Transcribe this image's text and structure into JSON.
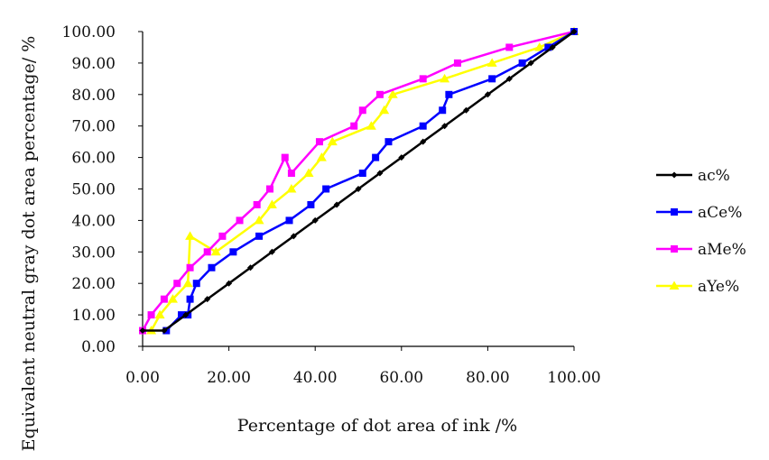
{
  "chart_data": {
    "type": "line",
    "title": "",
    "xlabel": "Percentage of dot area of ink /%",
    "ylabel": "Equivalent neutral gray dot area percentage/ %",
    "xlim": [
      0,
      100
    ],
    "ylim": [
      0,
      100
    ],
    "xticks": [
      "0.00",
      "20.00",
      "40.00",
      "60.00",
      "80.00",
      "100.00"
    ],
    "yticks": [
      "0.00",
      "10.00",
      "20.00",
      "30.00",
      "40.00",
      "50.00",
      "60.00",
      "70.00",
      "80.00",
      "90.00",
      "100.00"
    ],
    "grid": false,
    "legend_position": "right",
    "series": [
      {
        "name": "ac%",
        "color": "#000000",
        "marker": "diamond",
        "x": [
          0,
          5,
          10,
          15,
          20,
          25,
          30,
          35,
          40,
          45,
          50,
          55,
          60,
          65,
          70,
          75,
          80,
          85,
          90,
          95,
          100
        ],
        "y": [
          5,
          5,
          10,
          15,
          20,
          25,
          30,
          35,
          40,
          45,
          50,
          55,
          60,
          65,
          70,
          75,
          80,
          85,
          90,
          95,
          100
        ]
      },
      {
        "name": "aCe%",
        "color": "#0000ff",
        "marker": "square",
        "x": [
          5.5,
          9,
          10.5,
          11,
          12.5,
          16,
          21,
          27,
          34,
          39,
          42.5,
          51,
          54,
          57,
          65,
          69.5,
          71,
          81,
          88,
          94,
          100
        ],
        "y": [
          5,
          10,
          10,
          15,
          20,
          25,
          30,
          35,
          40,
          45,
          50,
          55,
          60,
          65,
          70,
          75,
          80,
          85,
          90,
          95,
          100
        ]
      },
      {
        "name": "aMe%",
        "color": "#ff00ff",
        "marker": "square",
        "x": [
          0,
          2,
          5,
          8,
          11,
          15,
          18.5,
          22.5,
          26.5,
          29.5,
          33,
          34.5,
          41,
          49,
          51,
          55,
          65,
          73,
          85,
          100
        ],
        "y": [
          5,
          10,
          15,
          20,
          25,
          30,
          35,
          40,
          45,
          50,
          60,
          55,
          65,
          70,
          75,
          80,
          85,
          90,
          95,
          100
        ]
      },
      {
        "name": "aYe%",
        "color": "#ffff00",
        "marker": "triangle",
        "x": [
          2,
          4,
          7,
          10.5,
          11,
          17,
          27,
          30,
          34.5,
          38.5,
          41.5,
          44,
          53,
          56,
          58,
          70,
          81,
          92,
          100
        ],
        "y": [
          5,
          10,
          15,
          20,
          35,
          30,
          40,
          45,
          50,
          55,
          60,
          65,
          70,
          75,
          80,
          85,
          90,
          95,
          100
        ]
      }
    ]
  }
}
